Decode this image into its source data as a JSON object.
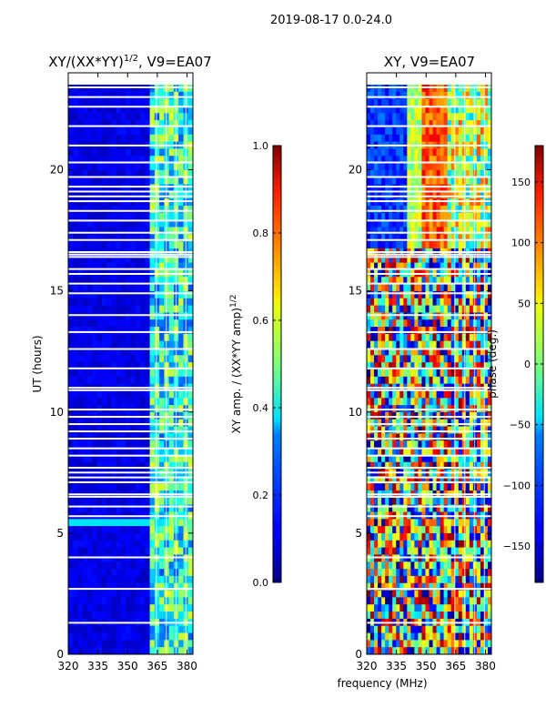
{
  "figure": {
    "suptitle": "2019-08-17 0.0-24.0",
    "xlabel": "frequency (MHz)"
  },
  "chart_data": [
    {
      "type": "heatmap",
      "title_main": "XY/(XX*YY)",
      "title_sup": "1/2",
      "title_tail": ", V9=EA07",
      "xlabel": "",
      "ylabel": "UT (hours)",
      "xlim": [
        320,
        383
      ],
      "ylim": [
        0,
        24
      ],
      "xticks": [
        320,
        335,
        350,
        365,
        380
      ],
      "yticks": [
        0,
        5,
        10,
        15,
        20
      ],
      "colorbar": {
        "label_main": "XY amp. / (XX*YY amp)",
        "label_sup": "1/2",
        "range": [
          0.0,
          1.0
        ],
        "ticks": [
          "0.0",
          "0.2",
          "0.4",
          "0.6",
          "0.8",
          "1.0"
        ],
        "colormap": "jet"
      }
    },
    {
      "type": "heatmap",
      "title_main": "XY, V9=EA07",
      "xlabel": "frequency (MHz)",
      "ylabel": "",
      "xlim": [
        320,
        383
      ],
      "ylim": [
        0,
        24
      ],
      "xticks": [
        320,
        335,
        350,
        365,
        380
      ],
      "yticks": [
        0,
        5,
        10,
        15,
        20
      ],
      "colorbar": {
        "label_main": "phase (deg.)",
        "range": [
          -180,
          180
        ],
        "ticks": [
          "−150",
          "−100",
          "−50",
          "0",
          "50",
          "100",
          "150"
        ],
        "tick_values": [
          -150,
          -100,
          -50,
          0,
          50,
          100,
          150
        ],
        "colormap": "jet"
      }
    }
  ],
  "flagged_hours": [
    1.3,
    2.7,
    4.0,
    5.7,
    6.1,
    6.5,
    6.6,
    7.1,
    7.3,
    7.5,
    7.7,
    8.2,
    8.5,
    8.9,
    9.2,
    9.5,
    9.8,
    10.1,
    10.9,
    11.0,
    11.8,
    12.6,
    13.3,
    14.0,
    14.9,
    15.3,
    15.7,
    15.9,
    16.4,
    16.5,
    16.6,
    17.1,
    17.4,
    17.9,
    18.3,
    18.7,
    18.9,
    19.1,
    19.3,
    19.7,
    20.3,
    21.0,
    21.8,
    22.6,
    23.0,
    23.4
  ],
  "channel_gaps_mhz": [
    364.5,
    369.5,
    374.5,
    379.5
  ]
}
